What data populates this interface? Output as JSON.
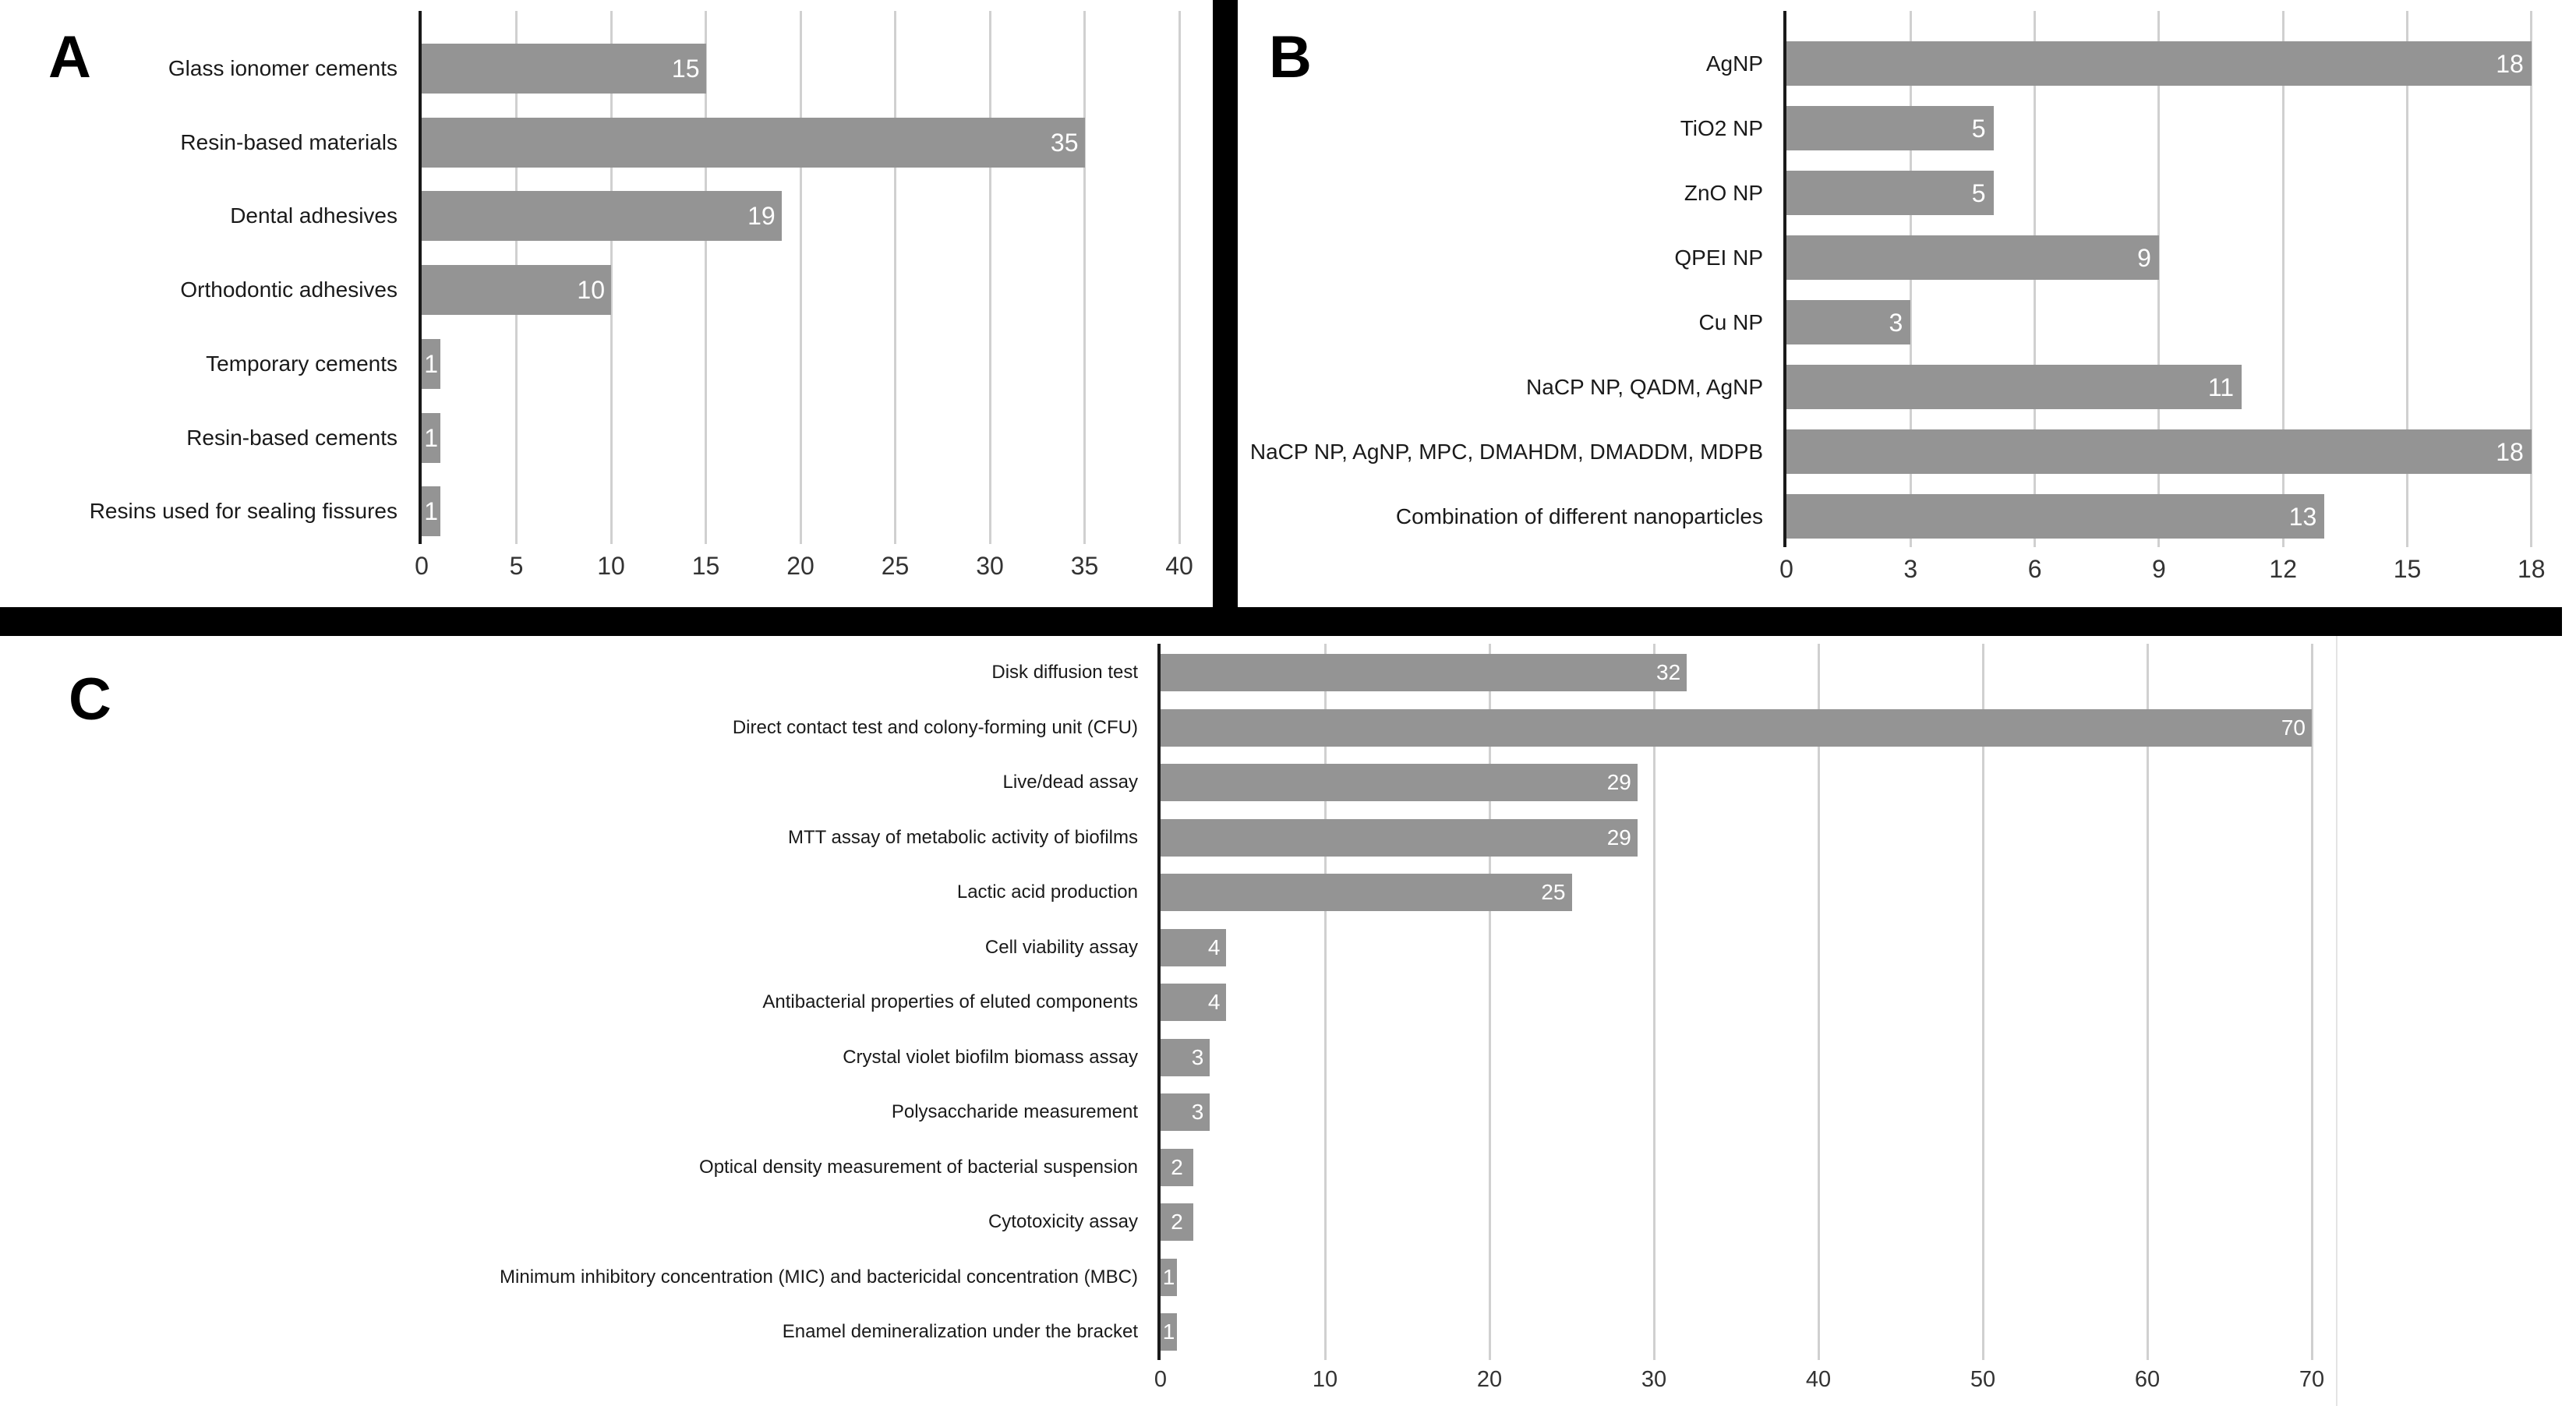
{
  "panel_letters": [
    "A",
    "B",
    "C"
  ],
  "chart_data": [
    {
      "type": "bar",
      "orientation": "horizontal",
      "panel": "A",
      "title": "",
      "xlabel": "",
      "ylabel": "",
      "categories": [
        "Glass ionomer cements",
        "Resin-based materials",
        "Dental adhesives",
        "Orthodontic adhesives",
        "Temporary cements",
        "Resin-based cements",
        "Resins used for sealing fissures"
      ],
      "values": [
        15,
        35,
        19,
        10,
        1,
        1,
        1
      ],
      "xlim": [
        0,
        40
      ],
      "xticks": [
        0,
        5,
        10,
        15,
        20,
        25,
        30,
        35,
        40
      ],
      "grid": true,
      "legend": "none",
      "value_labels": "inside-end"
    },
    {
      "type": "bar",
      "orientation": "horizontal",
      "panel": "B",
      "title": "",
      "xlabel": "",
      "ylabel": "",
      "categories": [
        "AgNP",
        "TiO2 NP",
        "ZnO NP",
        "QPEI NP",
        "Cu NP",
        "NaCP NP, QADM, AgNP",
        "NaCP NP, AgNP, MPC, DMAHDM, DMADDM, MDPB",
        "Combination of different nanoparticles"
      ],
      "values": [
        18,
        5,
        5,
        9,
        3,
        11,
        18,
        13
      ],
      "xlim": [
        0,
        18
      ],
      "xticks": [
        0,
        3,
        6,
        9,
        12,
        15,
        18
      ],
      "grid": true,
      "legend": "none",
      "value_labels": "inside-end"
    },
    {
      "type": "bar",
      "orientation": "horizontal",
      "panel": "C",
      "title": "",
      "xlabel": "",
      "ylabel": "",
      "categories": [
        "Disk diffusion test",
        "Direct contact test and colony-forming unit (CFU)",
        "Live/dead assay",
        "MTT assay of metabolic activity of biofilms",
        "Lactic acid production",
        "Cell viability assay",
        "Antibacterial properties of eluted components",
        "Crystal violet biofilm biomass assay",
        "Polysaccharide measurement",
        "Optical density measurement of bacterial suspension",
        "Cytotoxicity assay",
        "Minimum inhibitory concentration (MIC) and bactericidal concentration (MBC)",
        "Enamel demineralization under the bracket"
      ],
      "values": [
        32,
        70,
        29,
        29,
        25,
        4,
        4,
        3,
        3,
        2,
        2,
        1,
        1
      ],
      "xlim": [
        0,
        70
      ],
      "xticks": [
        0,
        10,
        20,
        30,
        40,
        50,
        60,
        70
      ],
      "grid": true,
      "legend": "none",
      "value_labels": "inside-end"
    }
  ],
  "colors": {
    "background": "#ffffff",
    "bar": "#949494",
    "value_label": "#ffffff",
    "gridline": "#d0d0d0",
    "axis_line": "#1a1a1a",
    "category_text": "#1a1a1a",
    "tick_text": "#333333",
    "divider": "#000000"
  }
}
